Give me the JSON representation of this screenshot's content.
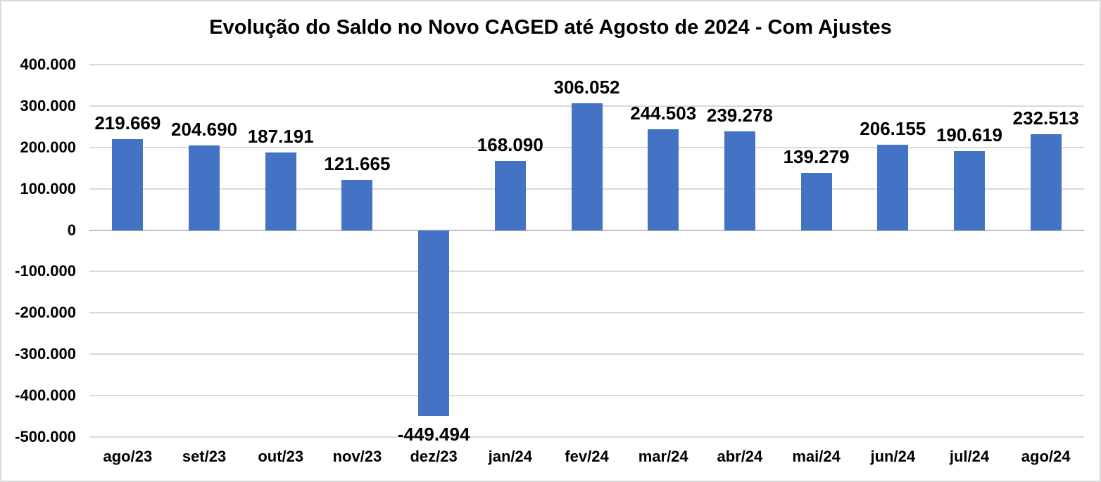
{
  "chart_data": {
    "type": "bar",
    "title": "Evolução do Saldo no Novo CAGED até Agosto de 2024 - Com Ajustes",
    "categories": [
      "ago/23",
      "set/23",
      "out/23",
      "nov/23",
      "dez/23",
      "jan/24",
      "fev/24",
      "mar/24",
      "abr/24",
      "mai/24",
      "jun/24",
      "jul/24",
      "ago/24"
    ],
    "values": [
      219669,
      204690,
      187191,
      121665,
      -449494,
      168090,
      306052,
      244503,
      239278,
      139279,
      206155,
      190619,
      232513
    ],
    "data_labels": [
      "219.669",
      "204.690",
      "187.191",
      "121.665",
      "-449.494",
      "168.090",
      "306.052",
      "244.503",
      "239.278",
      "139.279",
      "206.155",
      "190.619",
      "232.513"
    ],
    "xlabel": "",
    "ylabel": "",
    "ylim": [
      -500000,
      400000
    ],
    "yticks": [
      {
        "value": 400000,
        "label": "400.000"
      },
      {
        "value": 300000,
        "label": "300.000"
      },
      {
        "value": 200000,
        "label": "200.000"
      },
      {
        "value": 100000,
        "label": "100.000"
      },
      {
        "value": 0,
        "label": "0"
      },
      {
        "value": -100000,
        "label": "-100.000"
      },
      {
        "value": -200000,
        "label": "-200.000"
      },
      {
        "value": -300000,
        "label": "-300.000"
      },
      {
        "value": -400000,
        "label": "-400.000"
      },
      {
        "value": -500000,
        "label": "-500.000"
      }
    ],
    "grid": true,
    "legend": "none",
    "colors": {
      "bar": "#4472C4",
      "gridline": "#d9d9d9",
      "zero_axis_line": "#bfbfbf",
      "text": "#000000",
      "background": "#ffffff",
      "chart_border": "#d9d9d9"
    }
  }
}
